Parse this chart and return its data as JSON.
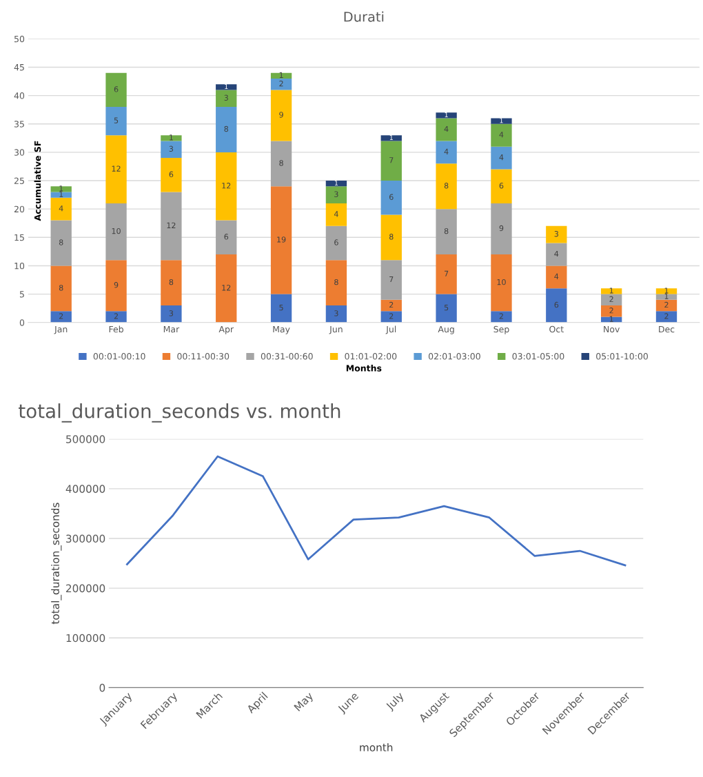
{
  "chart_data": [
    {
      "type": "bar",
      "title": "Durati",
      "ylabel": "Accumulative SF",
      "xlabel": "Months",
      "stacked": true,
      "categories": [
        "Jan",
        "Feb",
        "Mar",
        "Apr",
        "May",
        "Jun",
        "Jul",
        "Aug",
        "Sep",
        "Oct",
        "Nov",
        "Dec"
      ],
      "series": [
        {
          "name": "00:01-00:10",
          "color": "#4472c4",
          "values": [
            2,
            2,
            3,
            0,
            5,
            3,
            2,
            5,
            2,
            6,
            1,
            2
          ],
          "value_labels": [
            "2",
            "2",
            "3",
            null,
            "5",
            "3",
            "2",
            "5",
            "2",
            "6",
            "1",
            "2"
          ]
        },
        {
          "name": "00:11-00:30",
          "color": "#ed7d31",
          "values": [
            8,
            9,
            8,
            12,
            19,
            8,
            2,
            7,
            10,
            4,
            2,
            2
          ],
          "value_labels": [
            "8",
            "9",
            "8",
            "12",
            "19",
            "8",
            "2",
            "7",
            "10",
            "4",
            "2",
            "2"
          ]
        },
        {
          "name": "00:31-00:60",
          "color": "#a5a5a5",
          "values": [
            8,
            10,
            12,
            6,
            8,
            6,
            7,
            8,
            9,
            4,
            2,
            1
          ],
          "value_labels": [
            "8",
            "10",
            "12",
            "6",
            "8",
            "6",
            "7",
            "8",
            "9",
            "4",
            "2",
            "1"
          ]
        },
        {
          "name": "01:01-02:00",
          "color": "#ffc000",
          "values": [
            4,
            12,
            6,
            12,
            9,
            4,
            8,
            8,
            6,
            3,
            1,
            1
          ],
          "value_labels": [
            "4",
            "12",
            "6",
            "12",
            "9",
            "4",
            "8",
            "8",
            "6",
            "3",
            "1",
            "1"
          ]
        },
        {
          "name": "02:01-03:00",
          "color": "#5b9bd5",
          "values": [
            1,
            5,
            3,
            8,
            2,
            0,
            6,
            4,
            4,
            0,
            0,
            0
          ],
          "value_labels": [
            "1",
            "5",
            "3",
            "8",
            "2",
            null,
            "6",
            "4",
            "4",
            null,
            null,
            null
          ]
        },
        {
          "name": "03:01-05:00",
          "color": "#70ad47",
          "values": [
            1,
            6,
            1,
            3,
            1,
            3,
            7,
            4,
            4,
            0,
            0,
            0
          ],
          "value_labels": [
            "1",
            "6",
            "1",
            "3",
            "1",
            "3",
            "7",
            "4",
            "4",
            null,
            null,
            null
          ]
        },
        {
          "name": "05:01-10:00",
          "color": "#264478",
          "values": [
            0,
            0,
            0,
            1,
            0,
            1,
            1,
            1,
            1,
            0,
            0,
            0
          ],
          "value_labels": [
            null,
            null,
            null,
            "1",
            null,
            "1",
            "1",
            "1",
            "1",
            null,
            null,
            null
          ]
        }
      ],
      "ylim": [
        0,
        50
      ],
      "yticks": [
        0,
        5,
        10,
        15,
        20,
        25,
        30,
        35,
        40,
        45,
        50
      ],
      "grid": "y",
      "legend": "bottom"
    },
    {
      "type": "line",
      "title": "total_duration_seconds vs. month",
      "xlabel": "month",
      "ylabel": "total_duration_seconds",
      "categories": [
        "January",
        "February",
        "March",
        "April",
        "May",
        "June",
        "July",
        "August",
        "September",
        "October",
        "November",
        "December"
      ],
      "series": [
        {
          "color": "#4472c4",
          "values": [
            248000,
            345000,
            465000,
            425000,
            258000,
            338000,
            342000,
            365000,
            342000,
            265000,
            275000,
            246000
          ]
        }
      ],
      "ylim": [
        0,
        500000
      ],
      "yticks": [
        0,
        100000,
        200000,
        300000,
        400000,
        500000
      ],
      "grid": "y",
      "legend": false,
      "line_style": "solid",
      "marker": "none"
    }
  ]
}
